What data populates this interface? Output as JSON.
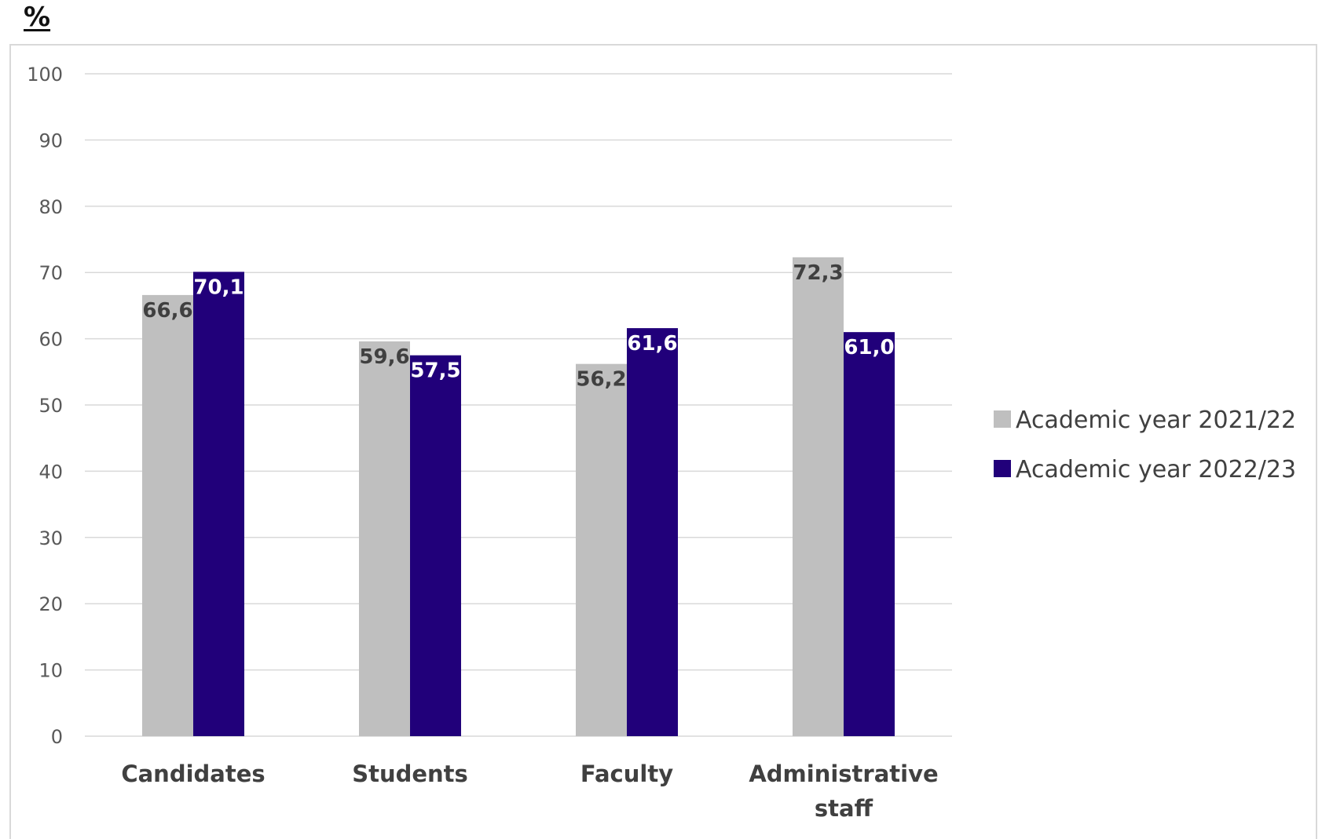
{
  "chart_data": {
    "type": "bar",
    "unit": "%",
    "categories": [
      [
        "Candidates"
      ],
      [
        "Students"
      ],
      [
        "Faculty"
      ],
      [
        "Administrative",
        "staff"
      ]
    ],
    "series": [
      {
        "name": "Academic year 2021/22",
        "color": "#bfbfbf",
        "label_color": "#404040",
        "values": [
          66.6,
          59.6,
          56.2,
          72.3
        ],
        "value_labels": [
          "66,6",
          "59,6",
          "56,2",
          "72,3"
        ]
      },
      {
        "name": "Academic year 2022/23",
        "color": "#21007a",
        "label_color": "#ffffff",
        "values": [
          70.1,
          57.5,
          61.6,
          61.0
        ],
        "value_labels": [
          "70,1",
          "57,5",
          "61,6",
          "61,0"
        ]
      }
    ],
    "ylim": [
      0,
      100
    ],
    "yticks": [
      0,
      10,
      20,
      30,
      40,
      50,
      60,
      70,
      80,
      90,
      100
    ],
    "grid": true,
    "legend_position": "right",
    "colors": {
      "grid": "#d9d9d9",
      "tick_text": "#595959",
      "category_text": "#404040"
    }
  }
}
